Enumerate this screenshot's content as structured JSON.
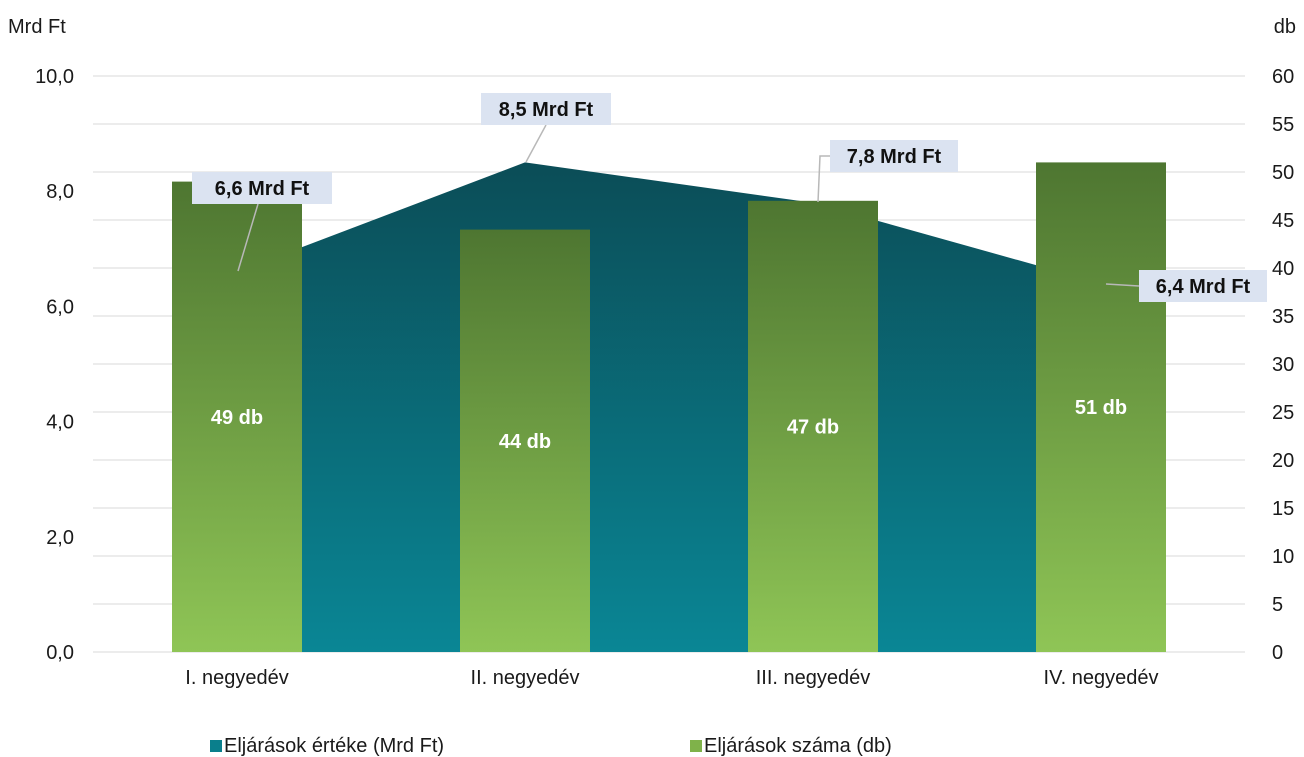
{
  "chart_data": {
    "type": "bar",
    "categories": [
      "I. negyedév",
      "II. negyedév",
      "III. negyedév",
      "IV. negyedév"
    ],
    "left_axis": {
      "label": "Mrd Ft",
      "range": [
        0,
        10
      ],
      "ticks": [
        "0,0",
        "2,0",
        "4,0",
        "6,0",
        "8,0",
        "10,0"
      ],
      "tick_values": [
        0,
        2,
        4,
        6,
        8,
        10
      ]
    },
    "right_axis": {
      "label": "db",
      "range": [
        0,
        60
      ],
      "ticks": [
        "0",
        "5",
        "10",
        "15",
        "20",
        "25",
        "30",
        "35",
        "40",
        "45",
        "50",
        "55",
        "60"
      ],
      "tick_values": [
        0,
        5,
        10,
        15,
        20,
        25,
        30,
        35,
        40,
        45,
        50,
        55,
        60
      ]
    },
    "series": [
      {
        "name": "Eljárások értéke (Mrd Ft)",
        "type": "area",
        "axis": "left",
        "values": [
          6.6,
          8.5,
          7.8,
          6.4
        ],
        "labels": [
          "6,6 Mrd Ft",
          "8,5 Mrd Ft",
          "7,8 Mrd Ft",
          "6,4 Mrd Ft"
        ],
        "color": "#0a7f8c",
        "color_top": "#0b4f5a"
      },
      {
        "name": "Eljárások száma (db)",
        "type": "bar",
        "axis": "right",
        "values": [
          49,
          44,
          47,
          51
        ],
        "labels": [
          "49 db",
          "44 db",
          "47 db",
          "51 db"
        ],
        "color": "#8cc152",
        "color_top": "#4f7a30"
      }
    ],
    "gridlines": true,
    "legend_position": "bottom"
  }
}
